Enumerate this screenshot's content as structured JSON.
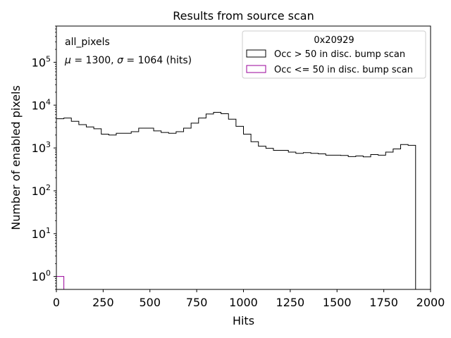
{
  "chart_data": {
    "type": "histogram",
    "title": "Results from source scan",
    "xlabel": "Hits",
    "ylabel": "Number of enabled pixels",
    "xlim": [
      0,
      2000
    ],
    "ylim": [
      0.5,
      700000
    ],
    "yscale": "log",
    "xticks": [
      0,
      250,
      500,
      750,
      1000,
      1250,
      1500,
      1750,
      2000
    ],
    "xtick_labels": [
      "0",
      "250",
      "500",
      "750",
      "1000",
      "1250",
      "1500",
      "1750",
      "2000"
    ],
    "yticks": [
      1,
      10,
      100,
      1000,
      10000,
      100000
    ],
    "ytick_labels": [
      {
        "base": "10",
        "exp": "0"
      },
      {
        "base": "10",
        "exp": "1"
      },
      {
        "base": "10",
        "exp": "2"
      },
      {
        "base": "10",
        "exp": "3"
      },
      {
        "base": "10",
        "exp": "4"
      },
      {
        "base": "10",
        "exp": "5"
      }
    ],
    "grid": false,
    "annotations": {
      "line1": "all_pixels",
      "mu_symbol": "μ",
      "sigma_symbol": "σ",
      "line2_part1": " = 1300, ",
      "line2_part2": " = 1064 (hits)"
    },
    "legend": {
      "title": "0x20929",
      "position": "top-right",
      "entries": [
        {
          "label": "Occ > 50 in disc. bump scan",
          "color": "#000000"
        },
        {
          "label": "Occ <= 50 in disc. bump scan",
          "color": "#990099"
        }
      ]
    },
    "series": [
      {
        "name": "Occ > 50 in disc. bump scan",
        "color": "#000000",
        "bin_edges": [
          0,
          40,
          80,
          120,
          160,
          200,
          240,
          280,
          320,
          360,
          400,
          440,
          480,
          520,
          560,
          600,
          640,
          680,
          720,
          760,
          800,
          840,
          880,
          920,
          960,
          1000,
          1040,
          1080,
          1120,
          1160,
          1200,
          1240,
          1280,
          1320,
          1360,
          1400,
          1440,
          1480,
          1520,
          1560,
          1600,
          1640,
          1680,
          1720,
          1760,
          1800,
          1840,
          1880,
          1920,
          1960,
          2000
        ],
        "values": [
          4800,
          5000,
          4200,
          3500,
          3100,
          2800,
          2100,
          2000,
          2200,
          2200,
          2400,
          2900,
          2900,
          2500,
          2300,
          2200,
          2400,
          2900,
          3800,
          5000,
          6200,
          6800,
          6300,
          4700,
          3200,
          2100,
          1400,
          1100,
          980,
          880,
          880,
          800,
          750,
          780,
          750,
          730,
          680,
          680,
          670,
          630,
          650,
          620,
          700,
          680,
          800,
          950,
          1200,
          1150,
          0,
          0
        ]
      },
      {
        "name": "Occ <= 50 in disc. bump scan",
        "color": "#990099",
        "bin_edges": [
          0,
          40
        ],
        "values": [
          1
        ]
      }
    ]
  }
}
